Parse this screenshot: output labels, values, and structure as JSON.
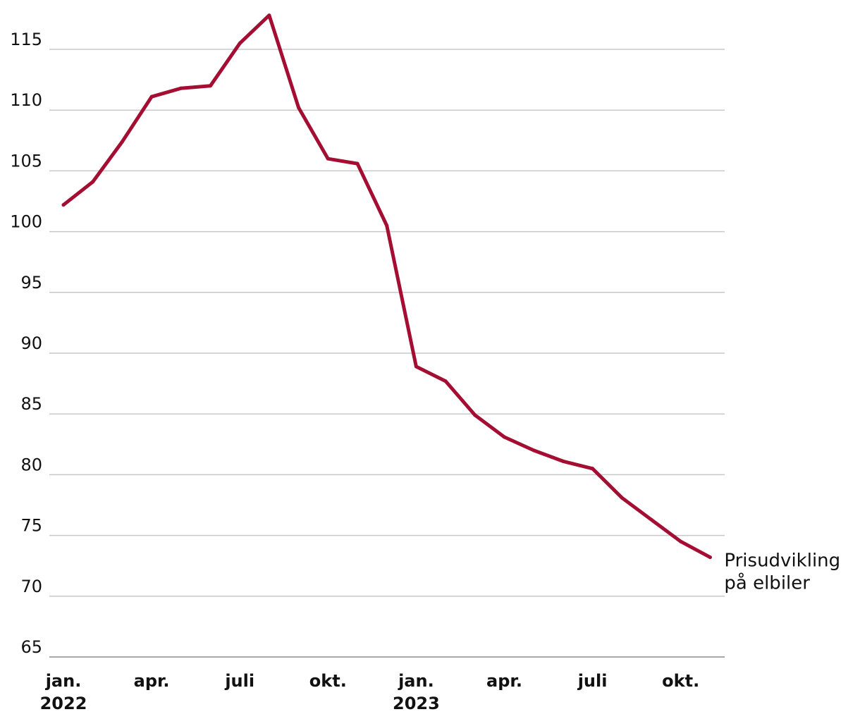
{
  "chart_data": {
    "type": "line",
    "title": "",
    "xlabel": "",
    "ylabel": "",
    "ylim": [
      65,
      118
    ],
    "yticks": [
      65,
      70,
      75,
      80,
      85,
      90,
      95,
      100,
      105,
      110,
      115
    ],
    "grid": true,
    "x": [
      "2022-01",
      "2022-02",
      "2022-03",
      "2022-04",
      "2022-05",
      "2022-06",
      "2022-07",
      "2022-08",
      "2022-09",
      "2022-10",
      "2022-11",
      "2022-12",
      "2023-01",
      "2023-02",
      "2023-03",
      "2023-04",
      "2023-05",
      "2023-06",
      "2023-07",
      "2023-08",
      "2023-09",
      "2023-10",
      "2023-11"
    ],
    "xticks": [
      {
        "x": "2022-01",
        "line1": "jan.",
        "line2": "2022"
      },
      {
        "x": "2022-04",
        "line1": "apr.",
        "line2": ""
      },
      {
        "x": "2022-07",
        "line1": "juli",
        "line2": ""
      },
      {
        "x": "2022-10",
        "line1": "okt.",
        "line2": ""
      },
      {
        "x": "2023-01",
        "line1": "jan.",
        "line2": "2023"
      },
      {
        "x": "2023-04",
        "line1": "apr.",
        "line2": ""
      },
      {
        "x": "2023-07",
        "line1": "juli",
        "line2": ""
      },
      {
        "x": "2023-10",
        "line1": "okt.",
        "line2": ""
      }
    ],
    "series": [
      {
        "name": "Prisudvikling på elbiler",
        "label_lines": [
          "Prisudvikling",
          "på elbiler"
        ],
        "color": "#a50e33",
        "values": [
          102.2,
          104.1,
          107.4,
          111.1,
          111.8,
          112.0,
          115.5,
          117.8,
          110.2,
          106.0,
          105.6,
          100.5,
          88.9,
          87.7,
          84.9,
          83.1,
          82.0,
          81.1,
          80.5,
          78.1,
          76.3,
          74.5,
          73.2
        ]
      }
    ]
  }
}
